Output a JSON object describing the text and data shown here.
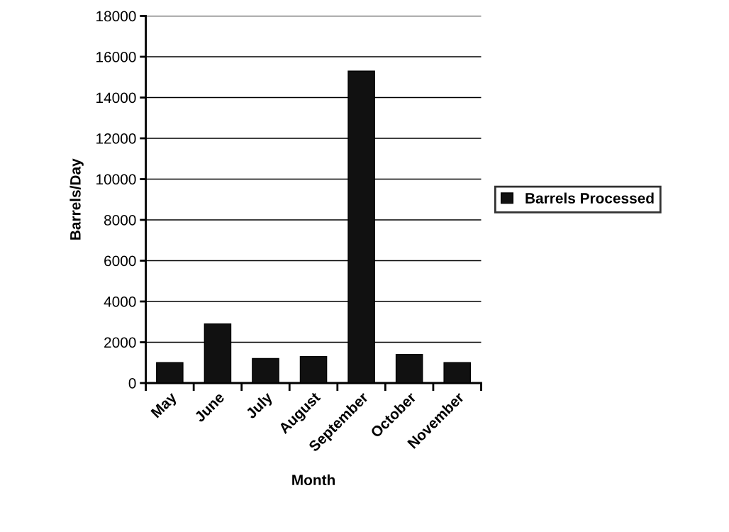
{
  "chart_data": {
    "type": "bar",
    "xlabel": "Month",
    "ylabel": "Barrels/Day",
    "categories": [
      "May",
      "June",
      "July",
      "August",
      "September",
      "October",
      "November"
    ],
    "series": [
      {
        "name": "Barrels Processed",
        "color": "#111111",
        "values": [
          1000,
          2900,
          1200,
          1300,
          15300,
          1400,
          1000
        ]
      }
    ],
    "ylim": [
      0,
      18000
    ],
    "yticks": [
      0,
      2000,
      4000,
      6000,
      8000,
      10000,
      12000,
      14000,
      16000,
      18000
    ],
    "grid": "y",
    "legend": "right"
  }
}
